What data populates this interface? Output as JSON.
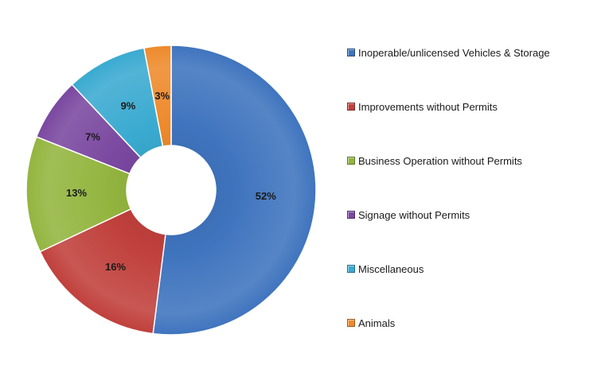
{
  "chart_data": {
    "type": "pie",
    "variant": "doughnut",
    "title": "",
    "categories": [
      "Inoperable/unlicensed Vehicles & Storage",
      "Improvements without Permits",
      "Business Operation without Permits",
      "Signage without Permits",
      "Miscellaneous",
      "Animals"
    ],
    "values": [
      52,
      16,
      13,
      7,
      9,
      3
    ],
    "data_labels": [
      "52%",
      "16%",
      "13%",
      "7%",
      "9%",
      "3%"
    ],
    "colors": [
      "#3f74be",
      "#c0403c",
      "#93b53f",
      "#7a48a0",
      "#3aaad0",
      "#ee8a2c"
    ],
    "legend_position": "right",
    "grid": false
  }
}
